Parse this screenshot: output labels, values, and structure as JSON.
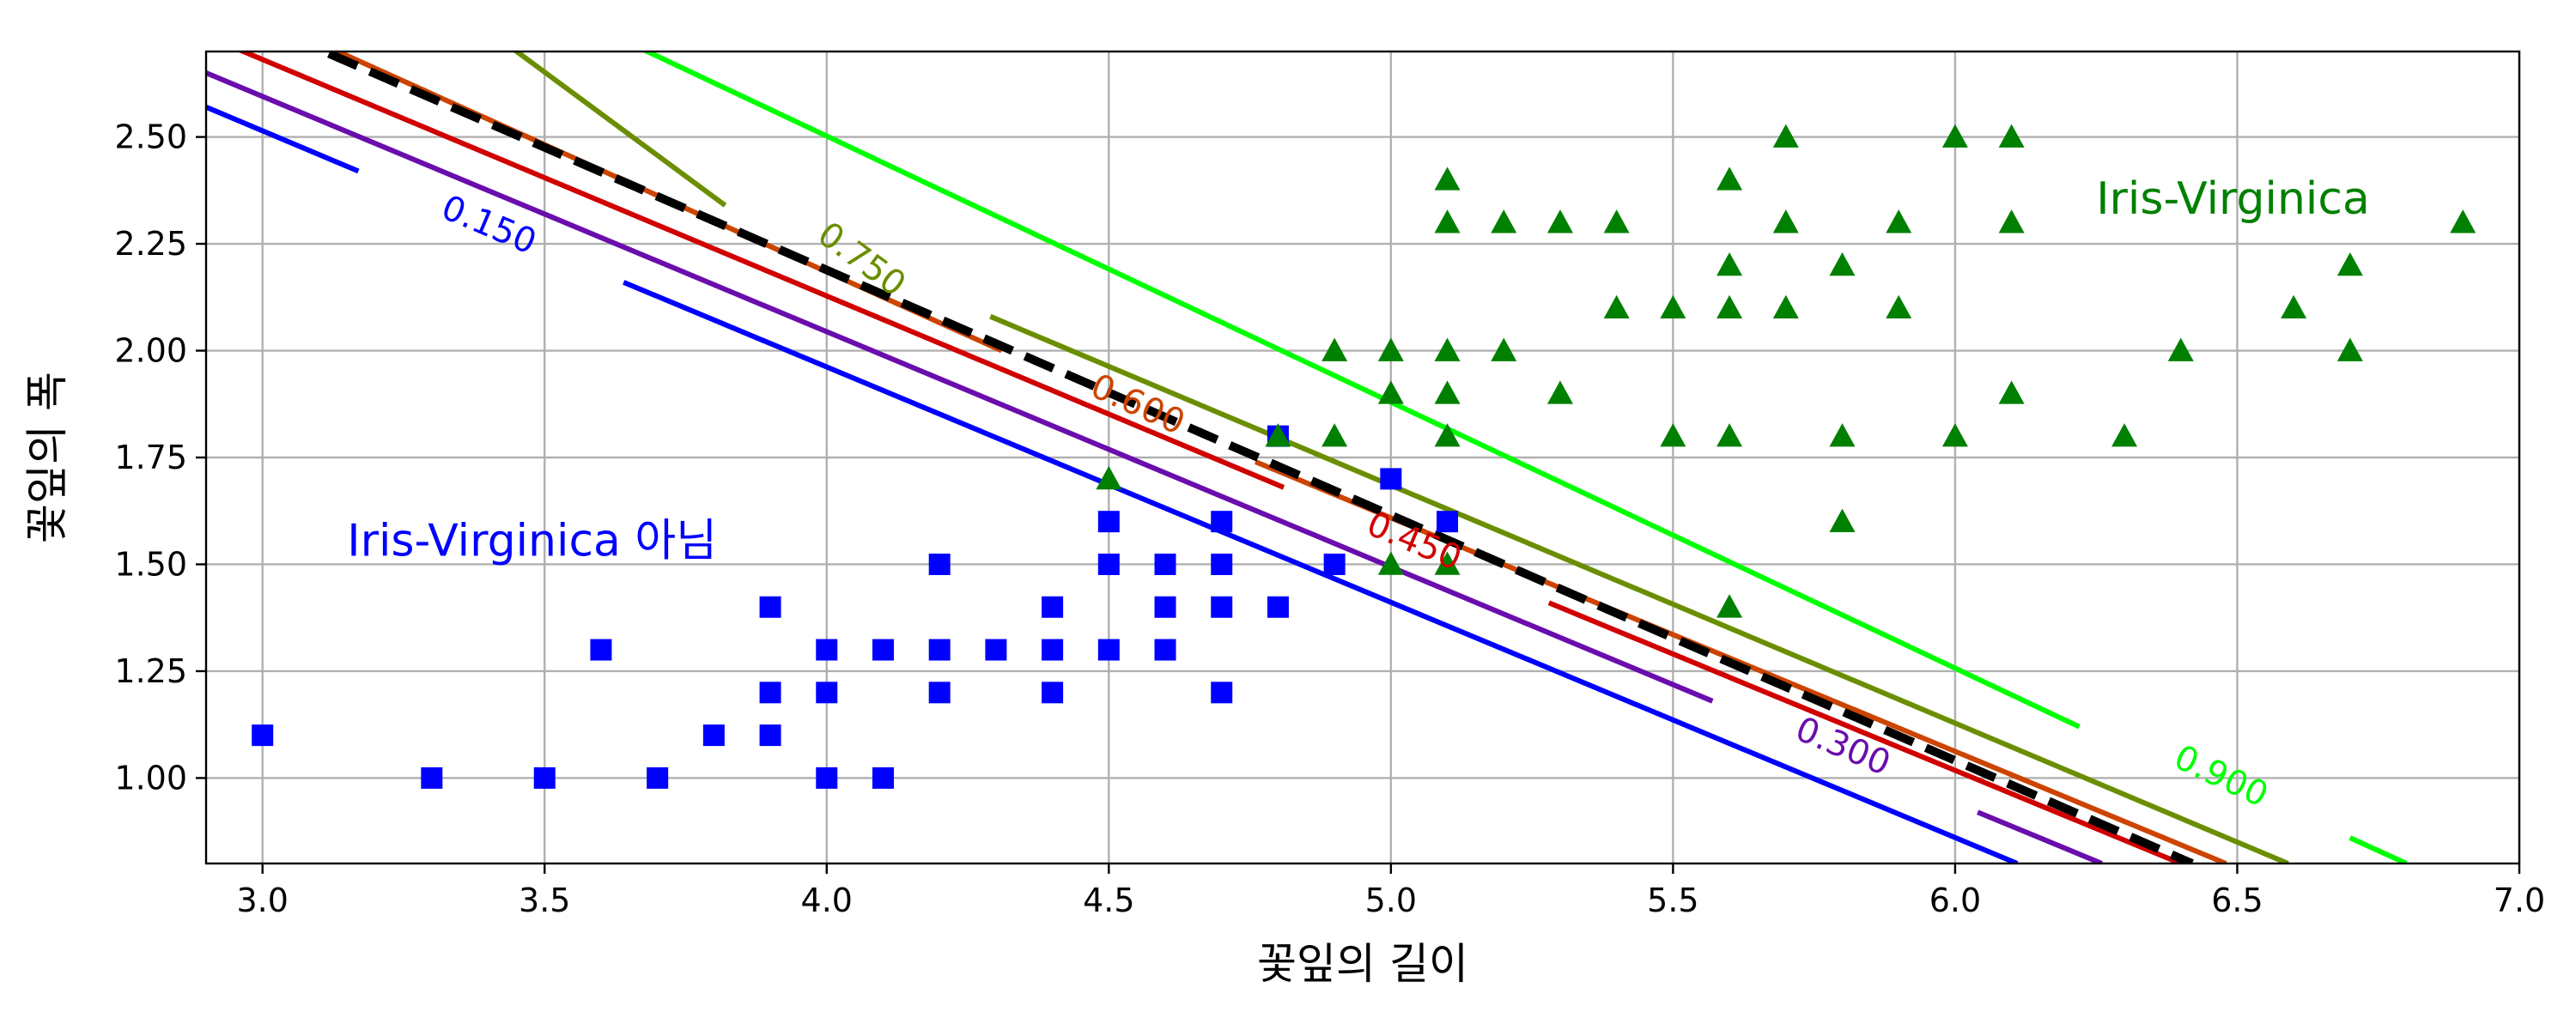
{
  "chart_data": {
    "type": "scatter",
    "xlabel": "꽃잎의 길이",
    "ylabel": "꽃잎의 폭",
    "xlim": [
      2.9,
      7.0
    ],
    "ylim": [
      0.8,
      2.7
    ],
    "x_ticks": [
      "3.0",
      "3.5",
      "4.0",
      "4.5",
      "5.0",
      "5.5",
      "6.0",
      "6.5",
      "7.0"
    ],
    "y_ticks": [
      "1.00",
      "1.25",
      "1.50",
      "1.75",
      "2.00",
      "2.25",
      "2.50"
    ],
    "grid": true,
    "annotations": [
      {
        "text": "Iris-Virginica 아님",
        "x": 3.15,
        "y": 1.52,
        "color": "#0000ff"
      },
      {
        "text": "Iris-Virginica",
        "x": 6.25,
        "y": 2.32,
        "color": "#008000"
      }
    ],
    "series": [
      {
        "name": "Iris-Virginica 아님",
        "marker": "square",
        "color": "#0000ff",
        "points": [
          [
            3.0,
            1.1
          ],
          [
            3.3,
            1.0
          ],
          [
            3.5,
            1.0
          ],
          [
            3.6,
            1.3
          ],
          [
            3.7,
            1.0
          ],
          [
            3.8,
            1.1
          ],
          [
            3.9,
            1.1
          ],
          [
            3.9,
            1.2
          ],
          [
            3.9,
            1.4
          ],
          [
            4.0,
            1.0
          ],
          [
            4.0,
            1.2
          ],
          [
            4.0,
            1.3
          ],
          [
            4.1,
            1.0
          ],
          [
            4.1,
            1.3
          ],
          [
            4.2,
            1.2
          ],
          [
            4.2,
            1.3
          ],
          [
            4.2,
            1.5
          ],
          [
            4.3,
            1.3
          ],
          [
            4.4,
            1.2
          ],
          [
            4.4,
            1.3
          ],
          [
            4.4,
            1.4
          ],
          [
            4.5,
            1.3
          ],
          [
            4.5,
            1.5
          ],
          [
            4.5,
            1.6
          ],
          [
            4.6,
            1.3
          ],
          [
            4.6,
            1.4
          ],
          [
            4.6,
            1.5
          ],
          [
            4.7,
            1.2
          ],
          [
            4.7,
            1.4
          ],
          [
            4.7,
            1.5
          ],
          [
            4.7,
            1.6
          ],
          [
            4.8,
            1.4
          ],
          [
            4.8,
            1.8
          ],
          [
            4.9,
            1.5
          ],
          [
            5.0,
            1.7
          ],
          [
            5.1,
            1.6
          ]
        ]
      },
      {
        "name": "Iris-Virginica",
        "marker": "triangle",
        "color": "#008000",
        "points": [
          [
            4.5,
            1.7
          ],
          [
            4.8,
            1.8
          ],
          [
            4.9,
            1.8
          ],
          [
            4.9,
            2.0
          ],
          [
            5.0,
            1.5
          ],
          [
            5.0,
            1.9
          ],
          [
            5.0,
            2.0
          ],
          [
            5.1,
            1.5
          ],
          [
            5.1,
            1.8
          ],
          [
            5.1,
            1.9
          ],
          [
            5.1,
            2.0
          ],
          [
            5.1,
            2.3
          ],
          [
            5.1,
            2.4
          ],
          [
            5.2,
            2.0
          ],
          [
            5.2,
            2.3
          ],
          [
            5.3,
            1.9
          ],
          [
            5.3,
            2.3
          ],
          [
            5.4,
            2.1
          ],
          [
            5.4,
            2.3
          ],
          [
            5.5,
            1.8
          ],
          [
            5.5,
            2.1
          ],
          [
            5.6,
            1.4
          ],
          [
            5.6,
            1.8
          ],
          [
            5.6,
            2.1
          ],
          [
            5.6,
            2.2
          ],
          [
            5.6,
            2.4
          ],
          [
            5.7,
            2.1
          ],
          [
            5.7,
            2.3
          ],
          [
            5.7,
            2.5
          ],
          [
            5.8,
            1.6
          ],
          [
            5.8,
            1.8
          ],
          [
            5.8,
            2.2
          ],
          [
            5.9,
            2.1
          ],
          [
            5.9,
            2.3
          ],
          [
            6.0,
            1.8
          ],
          [
            6.0,
            2.5
          ],
          [
            6.1,
            1.9
          ],
          [
            6.1,
            2.3
          ],
          [
            6.1,
            2.5
          ],
          [
            6.3,
            1.8
          ],
          [
            6.4,
            2.0
          ],
          [
            6.6,
            2.1
          ],
          [
            6.7,
            2.0
          ],
          [
            6.7,
            2.2
          ],
          [
            6.9,
            2.3
          ]
        ]
      }
    ],
    "contour_lines": [
      {
        "level": "0.150",
        "color": "#0000ff",
        "segments": [
          [
            [
              2.9,
              2.57
            ],
            [
              3.17,
              2.42
            ]
          ],
          [
            [
              3.64,
              2.16
            ],
            [
              6.11,
              0.8
            ]
          ]
        ],
        "label_at": [
          3.4,
          2.29
        ]
      },
      {
        "level": "0.300",
        "color": "#6a0dad",
        "segments": [
          [
            [
              2.9,
              2.65
            ],
            [
              5.57,
              1.18
            ]
          ],
          [
            [
              6.04,
              0.92
            ],
            [
              6.26,
              0.8
            ]
          ]
        ],
        "label_at": [
          5.8,
          1.07
        ]
      },
      {
        "level": "0.450",
        "color": "#d00000",
        "segments": [
          [
            [
              2.93,
              2.72
            ],
            [
              4.81,
              1.68
            ]
          ],
          [
            [
              5.28,
              1.41
            ],
            [
              6.4,
              0.8
            ]
          ]
        ],
        "label_at": [
          5.04,
          1.55
        ]
      },
      {
        "level": "0.600",
        "color": "#cc4400",
        "segments": [
          [
            [
              3.1,
              2.72
            ],
            [
              4.31,
              2.0
            ]
          ],
          [
            [
              4.76,
              1.74
            ],
            [
              6.48,
              0.8
            ]
          ]
        ],
        "label_at": [
          4.55,
          1.87
        ]
      },
      {
        "level": "0.750",
        "color": "#6b8e00",
        "segments": [
          [
            [
              3.43,
              2.72
            ],
            [
              3.82,
              2.34
            ]
          ],
          [
            [
              4.29,
              2.08
            ],
            [
              6.59,
              0.8
            ]
          ]
        ],
        "label_at": [
          4.06,
          2.21
        ]
      },
      {
        "level": "0.900",
        "color": "#00ff00",
        "segments": [
          [
            [
              3.65,
              2.72
            ],
            [
              6.22,
              1.12
            ]
          ],
          [
            [
              6.7,
              0.86
            ],
            [
              6.8,
              0.8
            ]
          ]
        ],
        "label_at": [
          6.47,
          1.0
        ]
      },
      {
        "level": "boundary",
        "color": "#000000",
        "dashed": true,
        "segments": [
          [
            [
              2.9,
              2.82
            ],
            [
              6.42,
              0.8
            ]
          ]
        ]
      }
    ]
  }
}
